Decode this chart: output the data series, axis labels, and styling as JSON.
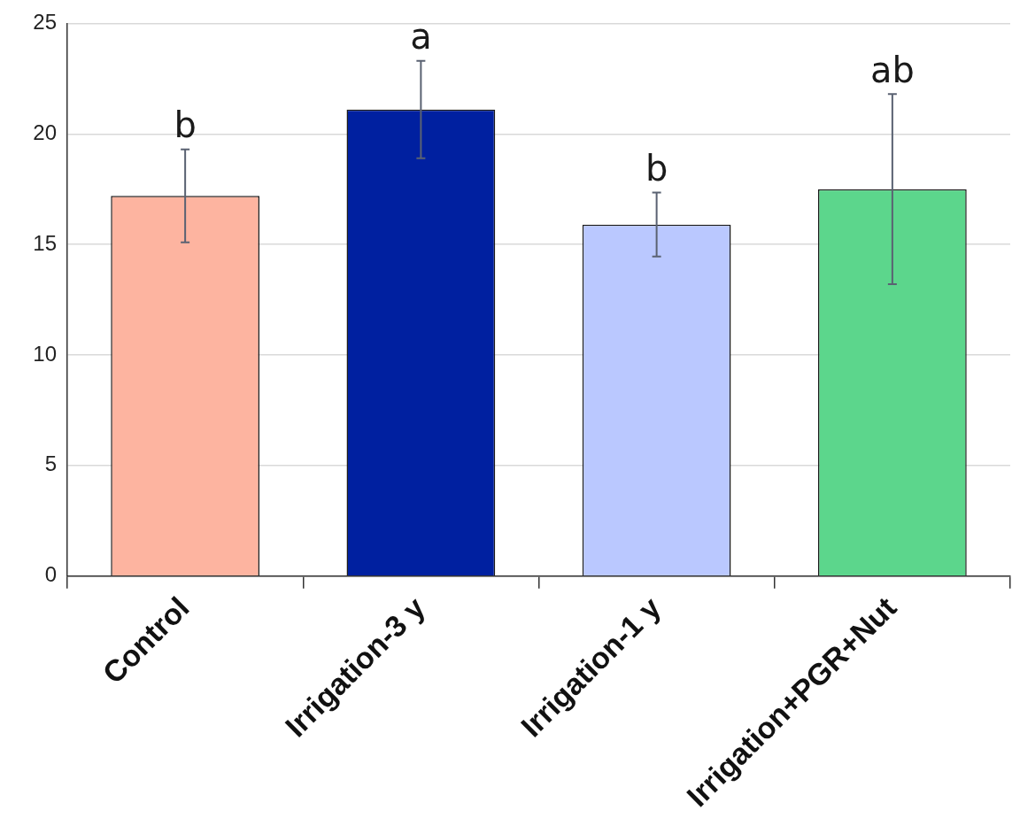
{
  "chart_data": {
    "type": "bar",
    "categories": [
      "Control",
      "Irrigation-3 y",
      "Irrigation-1 y",
      "Irrigation+PGR+Nut"
    ],
    "values": [
      17.2,
      21.1,
      15.9,
      17.5
    ],
    "colors": [
      "#fdb4a0",
      "#0020a0",
      "#bac8ff",
      "#5cd68c"
    ],
    "errors": [
      2.1,
      2.2,
      1.45,
      4.3
    ],
    "ylim": [
      0,
      25
    ],
    "yticks": [
      0,
      5,
      10,
      15,
      20,
      25
    ],
    "grid": "y",
    "legend": false,
    "annotations": [
      {
        "text": "b",
        "x": "Control",
        "y": 19.3
      },
      {
        "text": "a",
        "x": "Irrigation-3 y",
        "y": 23.3
      },
      {
        "text": "b",
        "x": "Irrigation-1 y",
        "y": 17.35
      },
      {
        "text": "ab",
        "x": "Irrigation+PGR+Nut",
        "y": 21.8
      }
    ]
  }
}
